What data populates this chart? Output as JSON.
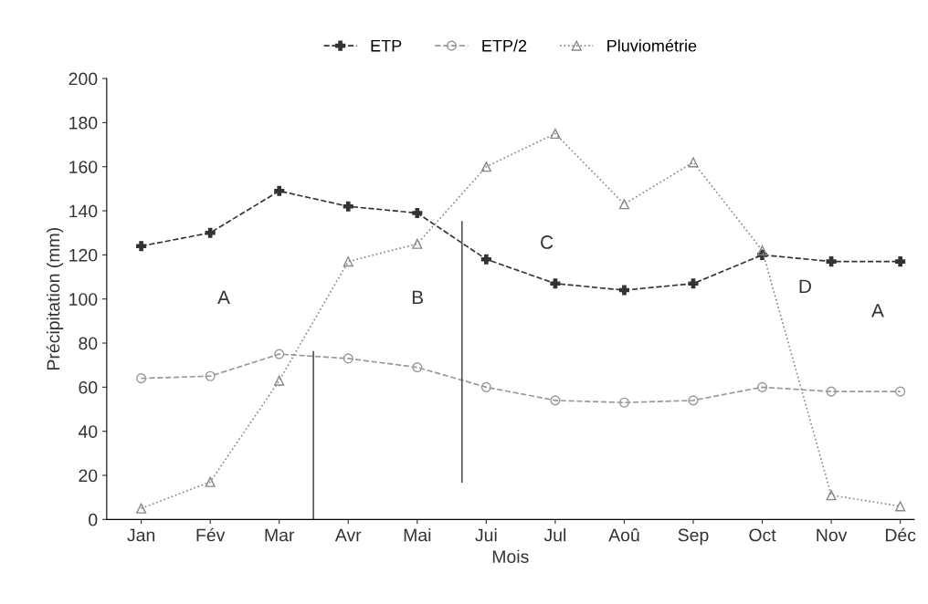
{
  "chart_data": {
    "type": "line",
    "xlabel": "Mois",
    "ylabel": "Précipitation (mm)",
    "categories": [
      "Jan",
      "Fév",
      "Mar",
      "Avr",
      "Mai",
      "Jui",
      "Jul",
      "Aoû",
      "Sep",
      "Oct",
      "Nov",
      "Déc"
    ],
    "ylim": [
      0,
      200
    ],
    "yticks": [
      0,
      20,
      40,
      60,
      80,
      100,
      120,
      140,
      160,
      180,
      200
    ],
    "grid": false,
    "legend": "top",
    "series": [
      {
        "name": "ETP",
        "color": "#333333",
        "marker": "cross",
        "line_style": "dashed",
        "values": [
          124,
          130,
          149,
          142,
          139,
          118,
          107,
          104,
          107,
          120,
          117,
          117
        ]
      },
      {
        "name": "ETP/2",
        "color": "#999999",
        "marker": "circle",
        "line_style": "dashed",
        "values": [
          64,
          65,
          75,
          73,
          69,
          60,
          54,
          53,
          54,
          60,
          58,
          58
        ]
      },
      {
        "name": "Pluviométrie",
        "color": "#888888",
        "marker": "triangle",
        "line_style": "dotted",
        "values": [
          5,
          17,
          63,
          117,
          125,
          160,
          175,
          143,
          162,
          122,
          11,
          6
        ]
      }
    ],
    "annotations": [
      "A",
      "B",
      "C",
      "D",
      "A"
    ]
  }
}
